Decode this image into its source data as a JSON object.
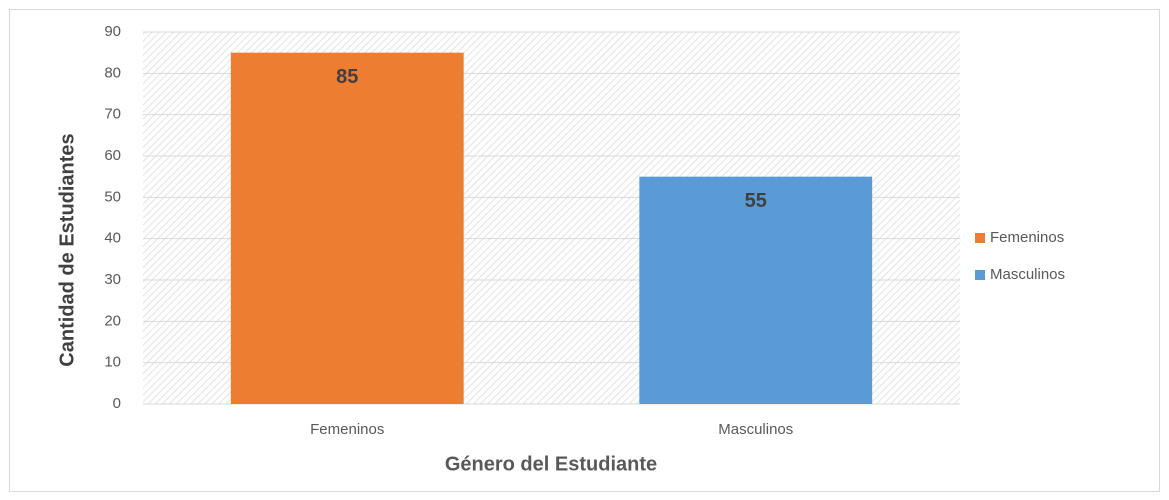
{
  "chart_data": {
    "type": "bar",
    "categories": [
      "Femeninos",
      "Masculinos"
    ],
    "values": [
      85,
      55
    ],
    "colors": [
      "#ed7d31",
      "#5b9bd5"
    ],
    "x_label": "Género del Estudiante",
    "y_label": "Cantidad de Estudiantes",
    "ylim": [
      0,
      90
    ],
    "yticks": [
      0,
      10,
      20,
      30,
      40,
      50,
      60,
      70,
      80,
      90
    ],
    "grid": true,
    "legend": "right",
    "data_labels": true
  }
}
